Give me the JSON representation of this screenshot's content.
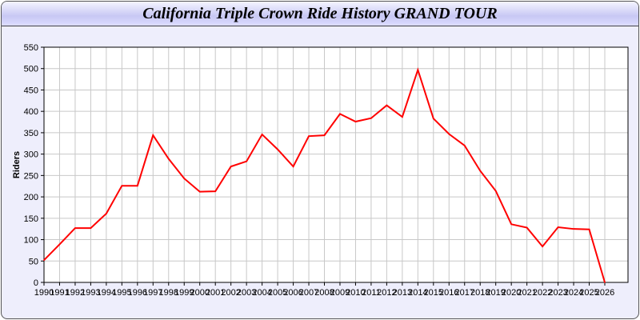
{
  "chart_data": {
    "type": "line",
    "title": "California Triple Crown Ride History GRAND TOUR",
    "xlabel": "",
    "ylabel": "Riders",
    "ylim": [
      0,
      550
    ],
    "yticks": [
      0,
      50,
      100,
      150,
      200,
      250,
      300,
      350,
      400,
      450,
      500,
      550
    ],
    "grid": true,
    "line_color": "#ff0000",
    "x": [
      1990,
      1991,
      1992,
      1993,
      1994,
      1995,
      1996,
      1997,
      1998,
      1999,
      2000,
      2001,
      2002,
      2003,
      2004,
      2005,
      2006,
      2007,
      2008,
      2009,
      2010,
      2011,
      2012,
      2013,
      2014,
      2015,
      2016,
      2017,
      2018,
      2019,
      2020,
      2021,
      2022,
      2023,
      2024,
      2025,
      2026
    ],
    "values": [
      52,
      89,
      127,
      127,
      161,
      226,
      226,
      344,
      289,
      243,
      212,
      213,
      271,
      283,
      346,
      311,
      271,
      342,
      344,
      394,
      376,
      384,
      414,
      387,
      497,
      383,
      347,
      320,
      261,
      214,
      136,
      128,
      84,
      129,
      125,
      124,
      0
    ]
  }
}
